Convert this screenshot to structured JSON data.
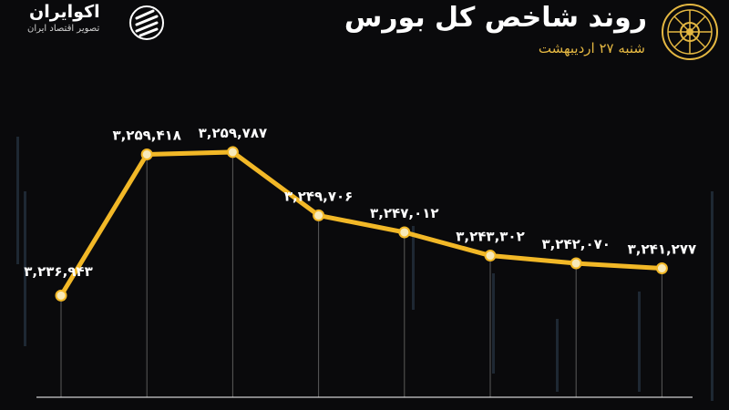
{
  "header": {
    "title": "روند شاخص کل بورس",
    "date": "شنبه ۲۷ اردیبهشت"
  },
  "brand": {
    "name": "اکوایران",
    "tagline": "تصویر اقتصاد ایران"
  },
  "colors": {
    "background": "#0a0a0c",
    "line": "#f2b827",
    "point_fill": "#f7e9b8",
    "label": "#ffffff",
    "accent": "#e5b842"
  },
  "chart_data": {
    "type": "line",
    "values": [
      3236943,
      3259418,
      3259787,
      3249706,
      3247012,
      3243302,
      3242070,
      3241277
    ],
    "data_labels": [
      "۳,۲۳۶,۹۴۳",
      "۳,۲۵۹,۴۱۸",
      "۳,۲۵۹,۷۸۷",
      "۳,۲۴۹,۷۰۶",
      "۳,۲۴۷,۰۱۲",
      "۳,۲۴۳,۳۰۲",
      "۳,۲۴۲,۰۷۰",
      "۳,۲۴۱,۲۷۷"
    ],
    "ylim": [
      3228000,
      3265000
    ],
    "grid": true
  }
}
